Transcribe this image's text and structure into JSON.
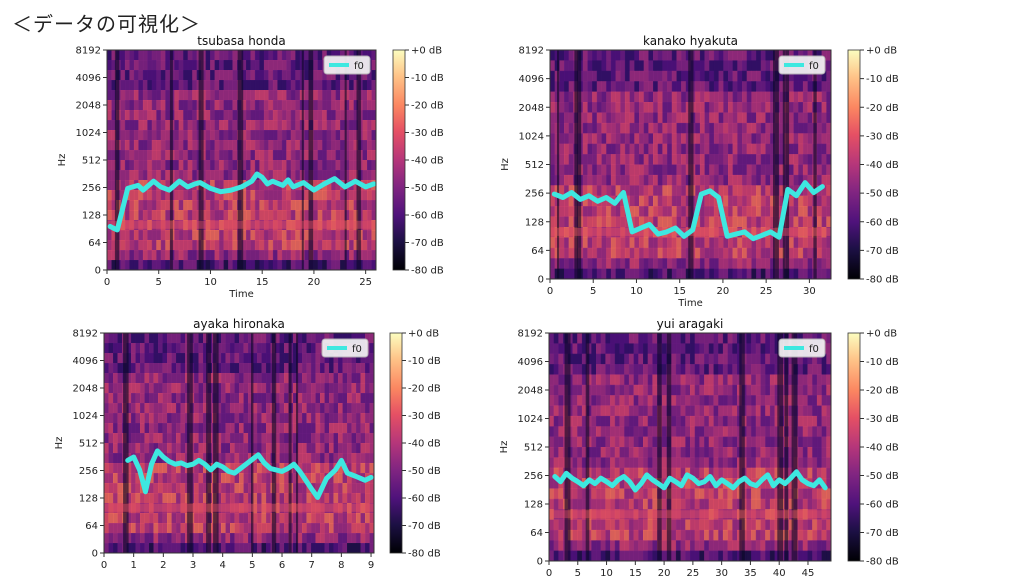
{
  "slide": {
    "title": "＜データの可視化＞"
  },
  "chart_data": [
    {
      "type": "heatmap",
      "title": "tsubasa honda",
      "xlabel": "Time",
      "ylabel": "Hz",
      "x_ticks": [
        "0",
        "5",
        "10",
        "15",
        "20",
        "25"
      ],
      "xlim": [
        0,
        26
      ],
      "y_ticks": [
        "0",
        "64",
        "128",
        "256",
        "512",
        "1024",
        "2048",
        "4096",
        "8192"
      ],
      "colorbar_ticks": [
        "+0 dB",
        "-10 dB",
        "-20 dB",
        "-30 dB",
        "-40 dB",
        "-50 dB",
        "-60 dB",
        "-70 dB",
        "-80 dB"
      ],
      "legend": [
        "f0"
      ],
      "series": [
        {
          "name": "f0",
          "x": [
            0.3,
            0.6,
            1.0,
            2.0,
            3.0,
            3.5,
            4.5,
            5.2,
            6.0,
            7.0,
            7.8,
            8.5,
            9.0,
            10.0,
            11.0,
            12.0,
            13.0,
            14.0,
            14.5,
            15.0,
            15.5,
            16.0,
            17.0,
            17.5,
            18.0,
            19.0,
            20.0,
            21.0,
            22.0,
            23.0,
            24.0,
            25.0,
            25.8
          ],
          "y": [
            96,
            92,
            88,
            250,
            270,
            240,
            300,
            260,
            240,
            300,
            260,
            280,
            290,
            250,
            230,
            240,
            260,
            300,
            360,
            330,
            280,
            300,
            270,
            310,
            260,
            290,
            240,
            280,
            320,
            260,
            300,
            260,
            280
          ]
        }
      ]
    },
    {
      "type": "heatmap",
      "title": "kanako hyakuta",
      "xlabel": "Time",
      "ylabel": "Hz",
      "x_ticks": [
        "0",
        "5",
        "10",
        "15",
        "20",
        "25",
        "30"
      ],
      "xlim": [
        0,
        32.5
      ],
      "y_ticks": [
        "0",
        "64",
        "128",
        "256",
        "512",
        "1024",
        "2048",
        "4096",
        "8192"
      ],
      "colorbar_ticks": [
        "+0 dB",
        "-10 dB",
        "-20 dB",
        "-30 dB",
        "-40 dB",
        "-50 dB",
        "-60 dB",
        "-70 dB",
        "-80 dB"
      ],
      "legend": [
        "f0"
      ],
      "series": [
        {
          "name": "f0",
          "x": [
            0.5,
            1.5,
            2.5,
            3.5,
            4.5,
            5.5,
            6.5,
            7.5,
            8.5,
            9.5,
            10.5,
            11.5,
            12.5,
            13.5,
            14.5,
            15.5,
            16.5,
            17.5,
            18.5,
            19.5,
            20.5,
            21.5,
            22.5,
            23.5,
            24.5,
            25.5,
            26.5,
            27.5,
            28.5,
            29.5,
            30.5,
            31.5
          ],
          "y": [
            250,
            230,
            260,
            220,
            240,
            210,
            230,
            200,
            260,
            100,
            110,
            120,
            95,
            100,
            110,
            90,
            105,
            250,
            270,
            230,
            90,
            95,
            100,
            85,
            92,
            100,
            88,
            280,
            240,
            330,
            260,
            300
          ]
        }
      ]
    },
    {
      "type": "heatmap",
      "title": "ayaka hironaka",
      "xlabel": "",
      "ylabel": "Hz",
      "x_ticks": [
        "0",
        "1",
        "2",
        "3",
        "4",
        "5",
        "6",
        "7",
        "8",
        "9"
      ],
      "xlim": [
        0,
        9.1
      ],
      "y_ticks": [
        "0",
        "64",
        "128",
        "256",
        "512",
        "1024",
        "2048",
        "4096",
        "8192"
      ],
      "colorbar_ticks": [
        "+0 dB",
        "-10 dB",
        "-20 dB",
        "-30 dB",
        "-40 dB",
        "-50 dB",
        "-60 dB",
        "-70 dB",
        "-80 dB"
      ],
      "legend": [
        "f0"
      ],
      "series": [
        {
          "name": "f0",
          "x": [
            0.8,
            1.0,
            1.2,
            1.4,
            1.6,
            1.8,
            2.0,
            2.2,
            2.4,
            2.6,
            2.8,
            3.0,
            3.2,
            3.4,
            3.6,
            3.8,
            4.0,
            4.2,
            4.4,
            5.2,
            5.4,
            5.6,
            5.8,
            6.0,
            6.2,
            6.4,
            6.6,
            6.8,
            7.0,
            7.2,
            7.5,
            7.8,
            8.0,
            8.2,
            8.5,
            8.8,
            9.0
          ],
          "y": [
            330,
            360,
            260,
            150,
            300,
            420,
            360,
            320,
            300,
            310,
            290,
            300,
            330,
            300,
            260,
            300,
            280,
            250,
            240,
            380,
            310,
            270,
            260,
            250,
            270,
            300,
            250,
            200,
            160,
            130,
            210,
            260,
            330,
            240,
            220,
            200,
            215
          ]
        }
      ]
    },
    {
      "type": "heatmap",
      "title": "yui aragaki",
      "xlabel": "",
      "ylabel": "Hz",
      "x_ticks": [
        "0",
        "5",
        "10",
        "15",
        "20",
        "25",
        "30",
        "35",
        "40",
        "45"
      ],
      "xlim": [
        0,
        49
      ],
      "y_ticks": [
        "0",
        "64",
        "128",
        "256",
        "512",
        "1024",
        "2048",
        "4096",
        "8192"
      ],
      "colorbar_ticks": [
        "+0 dB",
        "-10 dB",
        "-20 dB",
        "-30 dB",
        "-40 dB",
        "-50 dB",
        "-60 dB",
        "-70 dB",
        "-80 dB"
      ],
      "legend": [
        "f0"
      ],
      "series": [
        {
          "name": "f0",
          "x": [
            1,
            2,
            3,
            4,
            5,
            6,
            7,
            8,
            9,
            10,
            11,
            12,
            13,
            14,
            15,
            16,
            17,
            18,
            19,
            20,
            21,
            22,
            23,
            24,
            25,
            26,
            27,
            28,
            29,
            30,
            31,
            32,
            33,
            34,
            35,
            36,
            37,
            38,
            39,
            40,
            41,
            42,
            43,
            44,
            45,
            46,
            47,
            48
          ],
          "y": [
            250,
            220,
            270,
            240,
            220,
            200,
            230,
            210,
            240,
            220,
            200,
            230,
            250,
            220,
            180,
            210,
            260,
            230,
            210,
            190,
            240,
            220,
            200,
            260,
            240,
            210,
            220,
            250,
            200,
            230,
            210,
            190,
            220,
            240,
            210,
            200,
            230,
            260,
            200,
            230,
            210,
            240,
            280,
            230,
            210,
            200,
            230,
            190
          ]
        }
      ]
    }
  ]
}
